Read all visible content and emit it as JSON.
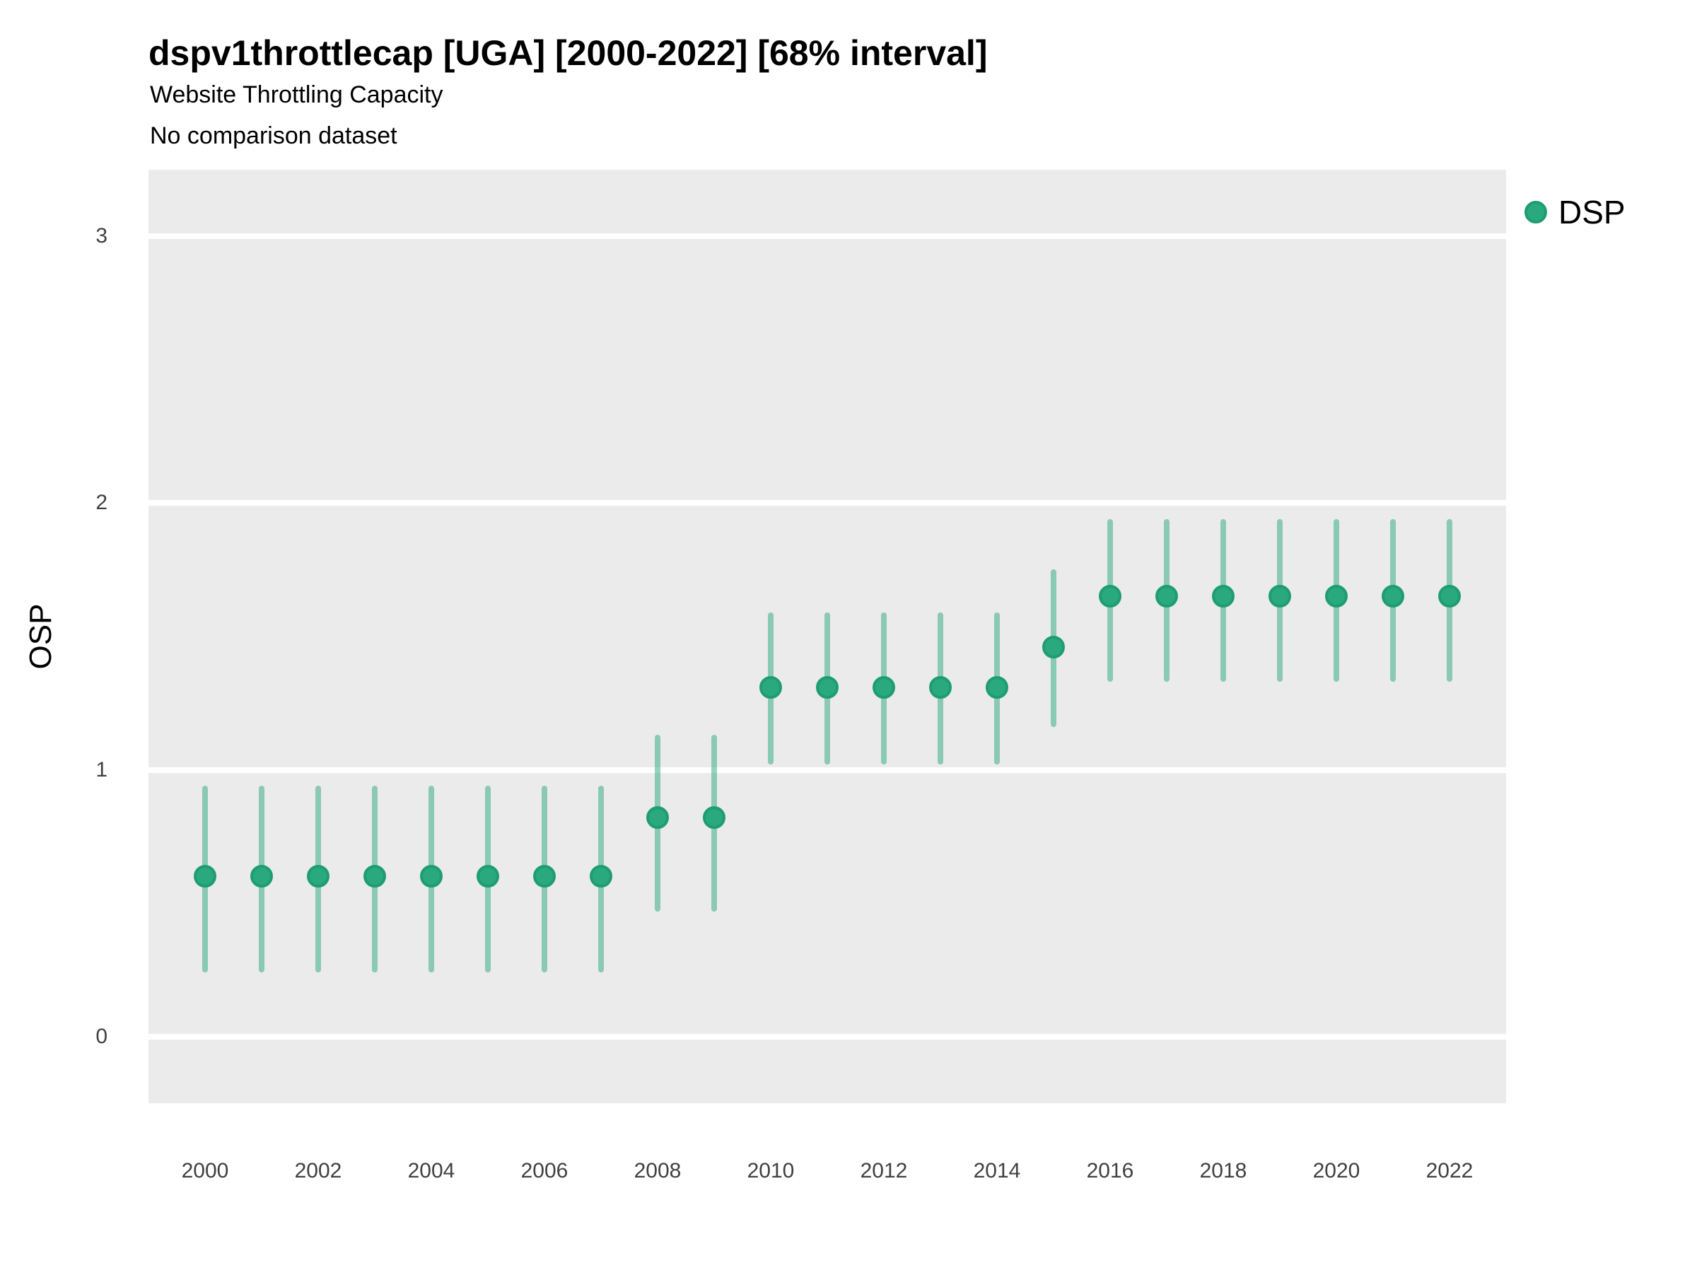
{
  "header": {
    "title": "dspv1throttlecap [UGA] [2000-2022] [68% interval]",
    "subtitle": "Website Throttling Capacity",
    "note": "No comparison dataset"
  },
  "legend": {
    "position": "right",
    "items": [
      {
        "label": "DSP",
        "color": "#2aa87e"
      }
    ]
  },
  "chart_data": {
    "type": "pointrange",
    "title": "dspv1throttlecap [UGA] [2000-2022] [68% interval]",
    "subtitle": "Website Throttling Capacity",
    "note": "No comparison dataset",
    "interval": "68%",
    "xlabel": "",
    "ylabel": "OSP",
    "x": [
      2000,
      2001,
      2002,
      2003,
      2004,
      2005,
      2006,
      2007,
      2008,
      2009,
      2010,
      2011,
      2012,
      2013,
      2014,
      2015,
      2016,
      2017,
      2018,
      2019,
      2020,
      2021,
      2022
    ],
    "series": [
      {
        "name": "DSP",
        "mid": [
          0.6,
          0.6,
          0.6,
          0.6,
          0.6,
          0.6,
          0.6,
          0.6,
          0.82,
          0.82,
          1.31,
          1.31,
          1.31,
          1.31,
          1.31,
          1.46,
          1.65,
          1.65,
          1.65,
          1.65,
          1.65,
          1.65,
          1.65
        ],
        "lo": [
          0.25,
          0.25,
          0.25,
          0.25,
          0.25,
          0.25,
          0.25,
          0.25,
          0.48,
          0.48,
          1.03,
          1.03,
          1.03,
          1.03,
          1.03,
          1.17,
          1.34,
          1.34,
          1.34,
          1.34,
          1.34,
          1.34,
          1.34
        ],
        "hi": [
          0.93,
          0.93,
          0.93,
          0.93,
          0.93,
          0.93,
          0.93,
          0.93,
          1.12,
          1.12,
          1.58,
          1.58,
          1.58,
          1.58,
          1.58,
          1.74,
          1.93,
          1.93,
          1.93,
          1.93,
          1.93,
          1.93,
          1.93
        ]
      }
    ],
    "x_ticks": [
      2000,
      2002,
      2004,
      2006,
      2008,
      2010,
      2012,
      2014,
      2016,
      2018,
      2020,
      2022
    ],
    "y_ticks": [
      0,
      1,
      2,
      3
    ],
    "xlim": [
      1999,
      2023
    ],
    "ylim": [
      -0.25,
      3.25
    ],
    "grid": "major-horizontal",
    "legend_position": "right",
    "panel_bg": "#ebebeb",
    "gridline_color": "#ffffff",
    "point_fill": "#2aa87e",
    "point_stroke": "#1f9d72",
    "range_color": "rgba(42,168,126,0.5)"
  }
}
